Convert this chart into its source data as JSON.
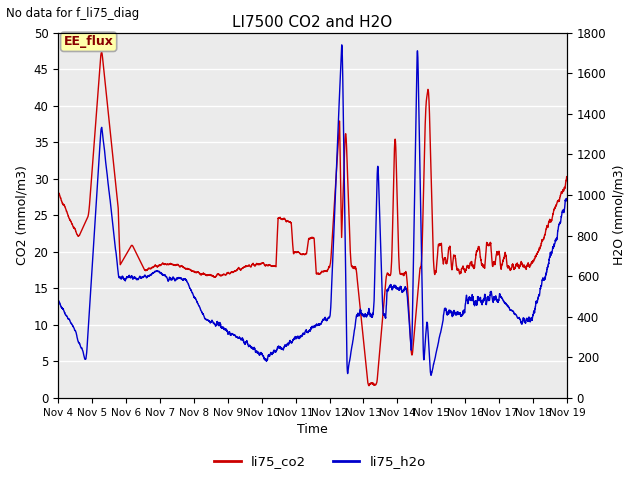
{
  "title": "LI7500 CO2 and H2O",
  "subtitle": "No data for f_li75_diag",
  "xlabel": "Time",
  "ylabel_left": "CO2 (mmol/m3)",
  "ylabel_right": "H2O (mmol/m3)",
  "legend_label_co2": "li75_co2",
  "legend_label_h2o": "li75_h2o",
  "annotation": "EE_flux",
  "co2_color": "#cc0000",
  "h2o_color": "#0000cc",
  "ylim_left": [
    0,
    50
  ],
  "ylim_right": [
    0,
    1800
  ],
  "fig_bg_color": "#ffffff",
  "plot_bg_color": "#ebebeb",
  "grid_color": "#ffffff",
  "tick_labels": [
    "Nov 4",
    "Nov 5",
    "Nov 6",
    "Nov 7",
    "Nov 8",
    "Nov 9",
    "Nov 10",
    "Nov 11",
    "Nov 12",
    "Nov 13",
    "Nov 14",
    "Nov 15",
    "Nov 16",
    "Nov 17",
    "Nov 18",
    "Nov 19"
  ],
  "n_points": 5000
}
